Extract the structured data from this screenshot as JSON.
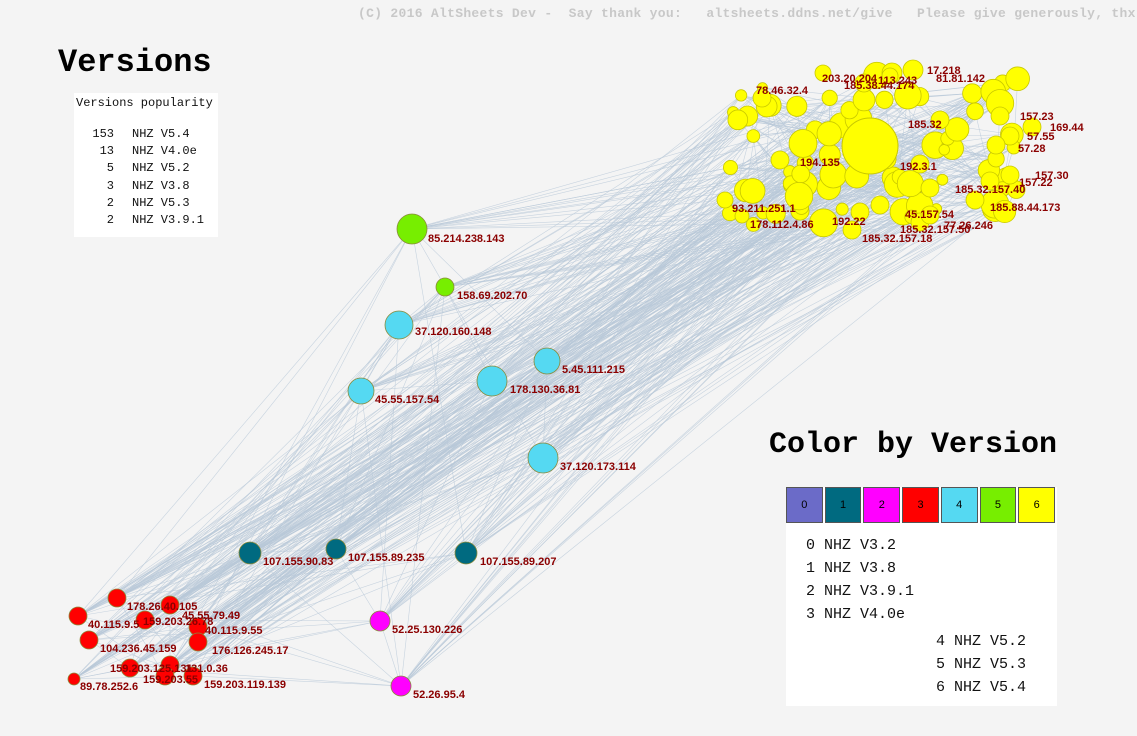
{
  "copyright": "(C) 2016 AltSheets Dev -  Say thank you:   altsheets.ddns.net/give   Please give generously, thx.",
  "versions_title": "Versions",
  "popularity": {
    "header": "Versions popularity",
    "rows": [
      {
        "count": "153",
        "name": "NHZ V5.4"
      },
      {
        "count": "13",
        "name": "NHZ V4.0e"
      },
      {
        "count": "5",
        "name": "NHZ V5.2"
      },
      {
        "count": "3",
        "name": "NHZ V3.8"
      },
      {
        "count": "2",
        "name": "NHZ V5.3"
      },
      {
        "count": "2",
        "name": "NHZ V3.9.1"
      }
    ]
  },
  "color_legend": {
    "title": "Color by Version",
    "swatches": [
      {
        "label": "0",
        "color": "#6b6bc8"
      },
      {
        "label": "1",
        "color": "#006a80"
      },
      {
        "label": "2",
        "color": "#ff00ff"
      },
      {
        "label": "3",
        "color": "#ff0000"
      },
      {
        "label": "4",
        "color": "#55d9f2"
      },
      {
        "label": "5",
        "color": "#77ee00"
      },
      {
        "label": "6",
        "color": "#ffff00"
      }
    ],
    "items": [
      "0 NHZ V3.2",
      "1 NHZ V3.8",
      "2 NHZ V3.9.1",
      "3 NHZ V4.0e",
      "4 NHZ V5.2",
      "5 NHZ V5.3",
      "6 NHZ V5.4"
    ]
  },
  "nodes": [
    {
      "label": "85.214.238.143",
      "version": 5
    },
    {
      "label": "158.69.202.70",
      "version": 5
    },
    {
      "label": "37.120.160.148",
      "version": 4
    },
    {
      "label": "5.45.111.215",
      "version": 4
    },
    {
      "label": "45.55.157.54",
      "version": 4
    },
    {
      "label": "178.130.36.81",
      "version": 4
    },
    {
      "label": "37.120.173.114",
      "version": 4
    },
    {
      "label": "107.155.90.83",
      "version": 1
    },
    {
      "label": "107.155.89.235",
      "version": 1
    },
    {
      "label": "107.155.89.207",
      "version": 1
    },
    {
      "label": "52.25.130.226",
      "version": 2
    },
    {
      "label": "52.26.95.4",
      "version": 2
    },
    {
      "label": "178.26.40.105",
      "version": 3
    },
    {
      "label": "45.55.79.49",
      "version": 3
    },
    {
      "label": "159.203.26.78",
      "version": 3
    },
    {
      "label": "40.115.9.5",
      "version": 3
    },
    {
      "label": "40.115.9.55",
      "version": 3
    },
    {
      "label": "104.236.45.159",
      "version": 3
    },
    {
      "label": "176.126.245.17",
      "version": 3
    },
    {
      "label": "159.203.125.131",
      "version": 3
    },
    {
      "label": "131.0.36",
      "version": 3
    },
    {
      "label": "159.203.55",
      "version": 3
    },
    {
      "label": "159.203.119.139",
      "version": 3
    },
    {
      "label": "89.78.252.6",
      "version": 3
    },
    {
      "label": "17.218",
      "version": 6
    },
    {
      "label": "81.81.142",
      "version": 6
    },
    {
      "label": "78.46.32.4",
      "version": 6
    },
    {
      "label": "185.38.44.174",
      "version": 6
    },
    {
      "label": "157.23",
      "version": 6
    },
    {
      "label": "169.44",
      "version": 6
    },
    {
      "label": "57.55",
      "version": 6
    },
    {
      "label": "57.28",
      "version": 6
    },
    {
      "label": "157.30",
      "version": 6
    },
    {
      "label": "157.22",
      "version": 6
    },
    {
      "label": "194.135",
      "version": 6
    },
    {
      "label": "192.3.1",
      "version": 6
    },
    {
      "label": "185.32",
      "version": 6
    },
    {
      "label": "185.88.44.173",
      "version": 6
    },
    {
      "label": "178.112.4.86",
      "version": 6
    },
    {
      "label": "93.211.251.1",
      "version": 6
    },
    {
      "label": "185.32.157.18",
      "version": 6
    },
    {
      "label": "185.32.157.50",
      "version": 6
    },
    {
      "label": "45.157.54",
      "version": 6
    },
    {
      "label": "77.26.246",
      "version": 6
    },
    {
      "label": "192.22",
      "version": 6
    },
    {
      "label": "185.32.157.40",
      "version": 6
    },
    {
      "label": "113.243",
      "version": 6
    },
    {
      "label": "203.20.204",
      "version": 6
    }
  ]
}
